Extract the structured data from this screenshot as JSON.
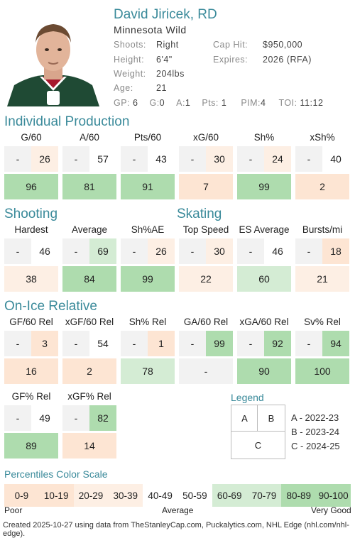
{
  "player": {
    "name": "David Jiricek, RD",
    "team": "Minnesota Wild",
    "shoots_label": "Shoots:",
    "shoots": "Right",
    "height_label": "Height:",
    "height": "6'4\"",
    "weight_label": "Weight:",
    "weight": "204lbs",
    "age_label": "Age:",
    "age": "21",
    "cap_label": "Cap Hit:",
    "cap": "$950,000",
    "expires_label": "Expires:",
    "expires": "2026 (RFA)",
    "gp_label": "GP:",
    "gp": "6",
    "g_label": "G:",
    "g": "0",
    "a_label": "A:",
    "a": "1",
    "pts_label": "Pts:",
    "pts": "1",
    "pim_label": "PIM:",
    "pim": "4",
    "toi_label": "TOI:",
    "toi": "11:12"
  },
  "sections": {
    "production": "Individual Production",
    "shooting": "Shooting",
    "skating": "Skating",
    "onice": "On-Ice Relative"
  },
  "colors": {
    "c0": "#fde5d3",
    "c1": "#fdefe4",
    "c2": "#ffffff",
    "c3": "#d4ecd4",
    "c4": "#aedcae",
    "blank": "#f2f2f2",
    "accent": "#3a8a9a"
  },
  "stats": {
    "production": [
      {
        "label": "G/60",
        "a": "-",
        "b": "26",
        "c": "96"
      },
      {
        "label": "A/60",
        "a": "-",
        "b": "57",
        "c": "81"
      },
      {
        "label": "Pts/60",
        "a": "-",
        "b": "43",
        "c": "91"
      },
      {
        "label": "xG/60",
        "a": "-",
        "b": "30",
        "c": "7"
      },
      {
        "label": "Sh%",
        "a": "-",
        "b": "24",
        "c": "99"
      },
      {
        "label": "xSh%",
        "a": "-",
        "b": "40",
        "c": "2"
      }
    ],
    "shooting_skating": [
      {
        "label": "Hardest",
        "a": "-",
        "b": "46",
        "c": "38"
      },
      {
        "label": "Average",
        "a": "-",
        "b": "69",
        "c": "84"
      },
      {
        "label": "Sh%AE",
        "a": "-",
        "b": "26",
        "c": "99"
      },
      {
        "label": "Top Speed",
        "a": "-",
        "b": "30",
        "c": "22"
      },
      {
        "label": "ES Average",
        "a": "-",
        "b": "46",
        "c": "60"
      },
      {
        "label": "Bursts/mi",
        "a": "-",
        "b": "18",
        "c": "21"
      }
    ],
    "onice1": [
      {
        "label": "GF/60 Rel",
        "a": "-",
        "b": "3",
        "c": "16"
      },
      {
        "label": "xGF/60 Rel",
        "a": "-",
        "b": "54",
        "c": "2"
      },
      {
        "label": "Sh% Rel",
        "a": "-",
        "b": "1",
        "c": "78"
      },
      {
        "label": "GA/60 Rel",
        "a": "-",
        "b": "99",
        "c": "-"
      },
      {
        "label": "xGA/60 Rel",
        "a": "-",
        "b": "92",
        "c": "90"
      },
      {
        "label": "Sv% Rel",
        "a": "-",
        "b": "94",
        "c": "100"
      }
    ],
    "onice2": [
      {
        "label": "GF% Rel",
        "a": "-",
        "b": "49",
        "c": "89"
      },
      {
        "label": "xGF% Rel",
        "a": "-",
        "b": "82",
        "c": "14"
      }
    ]
  },
  "legend": {
    "title": "Legend",
    "a": "A",
    "b": "B",
    "c": "C",
    "a_text": "A - 2022-23",
    "b_text": "B - 2023-24",
    "c_text": "C - 2024-25"
  },
  "scale": {
    "title": "Percentiles Color Scale",
    "bins": [
      "0-9",
      "10-19",
      "20-29",
      "30-39",
      "40-49",
      "50-59",
      "60-69",
      "70-79",
      "80-89",
      "90-100"
    ],
    "poor": "Poor",
    "average": "Average",
    "very_good": "Very Good"
  },
  "footer": "Created 2025-10-27 using data from TheStanleyCap.com, Puckalytics.com, NHL Edge (nhl.com/nhl-edge)."
}
